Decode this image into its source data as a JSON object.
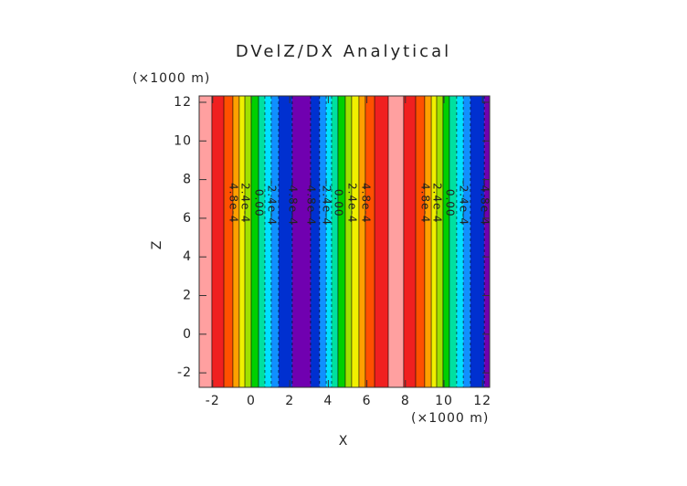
{
  "chart_data": {
    "type": "contour",
    "title": "DVelZ/DX Analytical",
    "x_label": "X",
    "y_label": "Z",
    "x_unit": "(×1000 m)",
    "y_unit": "(×1000 m)",
    "xlim": [
      -2.7,
      12.37
    ],
    "ylim": [
      -2.75,
      12.33
    ],
    "xticks": [
      -2,
      0,
      2,
      4,
      6,
      8,
      10,
      12
    ],
    "yticks": [
      -2,
      0,
      2,
      4,
      6,
      8,
      10,
      12
    ],
    "levels": [
      -0.0006,
      -0.00048,
      -0.00036,
      -0.00024,
      -0.00012,
      0,
      0.00012,
      0.00024,
      0.00036,
      0.00048,
      0.0006,
      0.00072
    ],
    "level_colors": [
      "#7000b0",
      "#0030d0",
      "#1090ff",
      "#00e0ff",
      "#00e0a0",
      "#00d000",
      "#a0e000",
      "#f0f000",
      "#ffa000",
      "#ff5000",
      "#f02020",
      "#ffa0a0"
    ],
    "x_edges": [
      -2.7,
      -2.04,
      -1.42,
      -0.95,
      -0.62,
      -0.33,
      0,
      0.38,
      0.71,
      1.04,
      1.42,
      2.13,
      3.08,
      3.55,
      3.89,
      4.17,
      4.5,
      4.88,
      5.21,
      5.59,
      5.92,
      6.4,
      7.11,
      7.91,
      8.53,
      9.0,
      9.34,
      9.62,
      9.95,
      10.28,
      10.66,
      11.0,
      11.37,
      12.09,
      12.37
    ],
    "values": [
      0.00072,
      0.0006,
      0.00048,
      0.00036,
      0.00024,
      0.00012,
      0,
      -0.00012,
      -0.00024,
      -0.00036,
      -0.00048,
      -0.0006,
      -0.00048,
      -0.00036,
      -0.00024,
      -0.00012,
      0,
      0.00012,
      0.00024,
      0.00036,
      0.00048,
      0.0006,
      0.00072,
      0.0006,
      0.00048,
      0.00036,
      0.00024,
      0.00012,
      0,
      -0.00012,
      -0.00024,
      -0.00036,
      -0.00048,
      -0.0006
    ],
    "contour_labels": [
      {
        "value": 0.00048,
        "label": "4.8e-4"
      },
      {
        "value": 0.00024,
        "label": "2.4e-4"
      },
      {
        "value": 0,
        "label": "0.00"
      },
      {
        "value": -0.00024,
        "label": "-2.4e-4"
      },
      {
        "value": -0.00048,
        "label": "-4.8e-4"
      }
    ]
  }
}
